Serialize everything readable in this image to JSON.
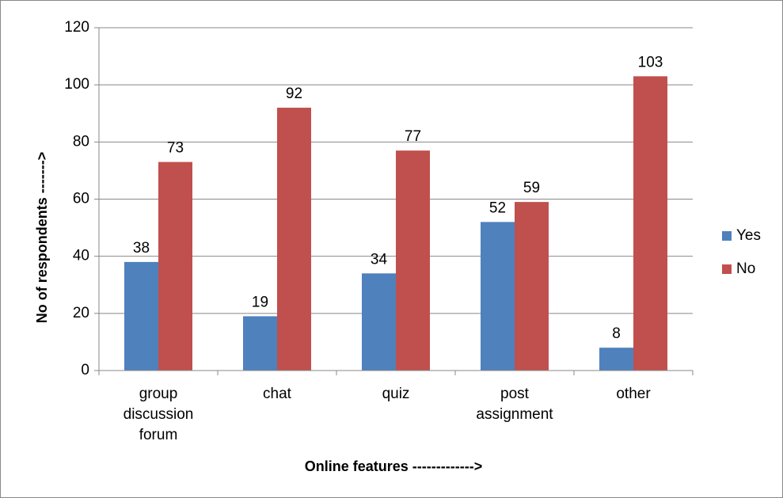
{
  "chart_data": {
    "type": "bar",
    "categories": [
      [
        "group",
        "discussion",
        "forum"
      ],
      [
        "chat"
      ],
      [
        "quiz"
      ],
      [
        "post",
        "assignment"
      ],
      [
        "other"
      ]
    ],
    "series": [
      {
        "name": "Yes",
        "color": "#4f81bd",
        "values": [
          38,
          19,
          34,
          52,
          8
        ]
      },
      {
        "name": "No",
        "color": "#c0504d",
        "values": [
          73,
          92,
          77,
          59,
          103
        ]
      }
    ],
    "ylim": [
      0,
      120
    ],
    "yticks": [
      0,
      20,
      40,
      60,
      80,
      100,
      120
    ],
    "grid": true,
    "xlabel": "Online features  ------------->",
    "ylabel": "No of respondents  ------->",
    "legend": "right"
  }
}
